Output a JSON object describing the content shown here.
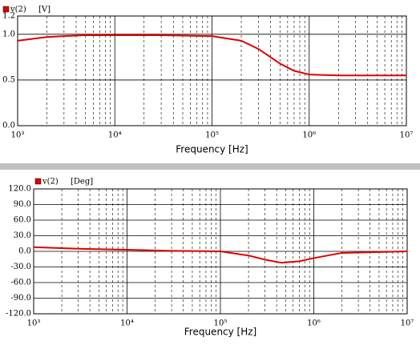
{
  "chart_data": [
    {
      "type": "line",
      "unit": "[V]",
      "x_label": "Frequency [Hz]",
      "log_x": true,
      "grid": true,
      "xlim": [
        1000,
        10000000
      ],
      "xticks": [
        {
          "value": 1000,
          "label": "10³"
        },
        {
          "value": 10000,
          "label": "10⁴"
        },
        {
          "value": 100000,
          "label": "10⁵"
        },
        {
          "value": 1000000,
          "label": "10⁶"
        },
        {
          "value": 10000000,
          "label": "10⁷"
        }
      ],
      "ylim": [
        0,
        1.2
      ],
      "yticks": [
        {
          "value": 0,
          "label": "0.0"
        },
        {
          "value": 0.5,
          "label": "0.5"
        },
        {
          "value": 1,
          "label": "1.0"
        },
        {
          "value": 1.2,
          "label": "1.2"
        }
      ],
      "x": [
        1000,
        2000,
        3000,
        5000,
        10000,
        30000,
        100000,
        200000,
        300000,
        500000,
        700000,
        1000000,
        2000000,
        10000000
      ],
      "series": [
        {
          "name": "v(2)",
          "color": "#e00000",
          "values": [
            0.93,
            0.97,
            0.98,
            0.99,
            0.99,
            0.99,
            0.98,
            0.93,
            0.84,
            0.68,
            0.6,
            0.56,
            0.55,
            0.55
          ]
        }
      ]
    },
    {
      "type": "line",
      "unit": "[Deg]",
      "x_label": "Frequency [Hz]",
      "log_x": true,
      "grid": true,
      "xlim": [
        1000,
        10000000
      ],
      "xticks": [
        {
          "value": 1000,
          "label": "10³"
        },
        {
          "value": 10000,
          "label": "10⁴"
        },
        {
          "value": 100000,
          "label": "10⁵"
        },
        {
          "value": 1000000,
          "label": "10⁶"
        },
        {
          "value": 10000000,
          "label": "10⁷"
        }
      ],
      "ylim": [
        -120,
        120
      ],
      "yticks": [
        {
          "value": -120,
          "label": "-120.0"
        },
        {
          "value": -90,
          "label": "-90.0"
        },
        {
          "value": -60,
          "label": "-60.0"
        },
        {
          "value": -30,
          "label": "-30.0"
        },
        {
          "value": 0,
          "label": "0.0"
        },
        {
          "value": 30,
          "label": "30.0"
        },
        {
          "value": 60,
          "label": "60.0"
        },
        {
          "value": 90,
          "label": "90.0"
        },
        {
          "value": 120,
          "label": "120.0"
        }
      ],
      "x": [
        1000,
        3000,
        10000,
        30000,
        100000,
        200000,
        300000,
        450000,
        700000,
        1000000,
        2000000,
        10000000
      ],
      "series": [
        {
          "name": "v(2)",
          "color": "#e00000",
          "values": [
            8,
            5,
            3,
            1,
            0,
            -8,
            -16,
            -22,
            -19,
            -13,
            -3,
            0
          ]
        }
      ]
    }
  ]
}
